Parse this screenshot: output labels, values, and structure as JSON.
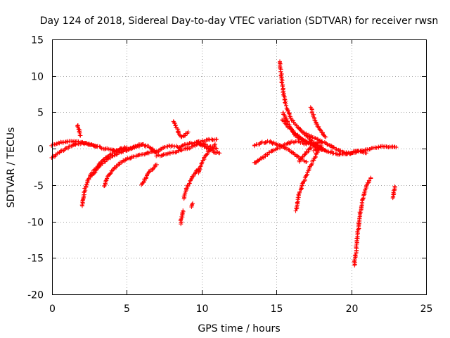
{
  "chart_data": {
    "type": "scatter",
    "title": "Day 124 of 2018, Sidereal Day-to-day VTEC variation (SDTVAR) for receiver rwsn",
    "xlabel": "GPS time / hours",
    "ylabel": "SDTVAR / TECUs",
    "xlim": [
      0,
      25
    ],
    "ylim": [
      -20,
      15
    ],
    "xticks": [
      0,
      5,
      10,
      15,
      20,
      25
    ],
    "yticks": [
      -20,
      -15,
      -10,
      -5,
      0,
      5,
      10,
      15
    ],
    "grid": true,
    "marker": "+",
    "color": "#ff0000",
    "series": [
      {
        "name": "track-01",
        "x": [
          0.0,
          0.5,
          1.0,
          1.5,
          2.0,
          2.5,
          3.0,
          3.5,
          4.0,
          4.5,
          5.0
        ],
        "y": [
          0.5,
          0.8,
          1.0,
          1.0,
          0.8,
          0.6,
          0.3,
          0.0,
          -0.2,
          -0.1,
          0.2
        ]
      },
      {
        "name": "track-02",
        "x": [
          0.0,
          0.4,
          0.8,
          1.2,
          1.6,
          2.0,
          2.5,
          3.0
        ],
        "y": [
          -1.2,
          -0.6,
          -0.1,
          0.3,
          0.6,
          0.8,
          0.6,
          0.3
        ]
      },
      {
        "name": "track-03",
        "x": [
          1.7,
          1.75,
          1.8,
          1.85,
          1.9
        ],
        "y": [
          3.3,
          3.0,
          2.6,
          2.2,
          1.8
        ]
      },
      {
        "name": "track-04",
        "x": [
          2.0,
          2.1,
          2.2,
          2.4,
          2.7,
          3.0,
          3.3,
          3.6,
          4.0,
          4.5
        ],
        "y": [
          -7.8,
          -6.5,
          -5.5,
          -4.3,
          -3.3,
          -2.5,
          -1.8,
          -1.2,
          -0.7,
          -0.2
        ]
      },
      {
        "name": "track-05",
        "x": [
          2.6,
          3.0,
          3.4,
          3.8,
          4.2,
          4.8,
          5.5,
          6.0
        ],
        "y": [
          -3.8,
          -2.8,
          -2.0,
          -1.3,
          -0.8,
          -0.3,
          0.2,
          0.5
        ]
      },
      {
        "name": "track-06",
        "x": [
          3.5,
          3.7,
          4.0,
          4.4,
          4.8,
          5.3,
          5.8,
          6.3,
          7.0
        ],
        "y": [
          -5.2,
          -4.0,
          -3.0,
          -2.2,
          -1.6,
          -1.2,
          -0.9,
          -0.6,
          -0.4
        ]
      },
      {
        "name": "track-07",
        "x": [
          4.5,
          5.0,
          5.5,
          6.0,
          6.5,
          7.0,
          7.5,
          8.0,
          8.5,
          9.0,
          9.5,
          10.0,
          10.5,
          11.0
        ],
        "y": [
          0.0,
          -0.2,
          0.3,
          0.6,
          0.2,
          -0.5,
          0.3,
          0.4,
          0.2,
          0.6,
          0.8,
          1.0,
          1.2,
          1.3
        ]
      },
      {
        "name": "track-08",
        "x": [
          6.0,
          6.2,
          6.5,
          6.8,
          7.0
        ],
        "y": [
          -5.0,
          -4.2,
          -3.2,
          -2.6,
          -2.2
        ]
      },
      {
        "name": "track-09",
        "x": [
          7.0,
          7.5,
          8.0,
          8.5,
          9.0,
          9.5,
          10.0,
          10.5,
          11.0
        ],
        "y": [
          -1.0,
          -0.8,
          -0.6,
          -0.3,
          0.0,
          0.4,
          0.7,
          0.3,
          0.0
        ]
      },
      {
        "name": "track-10",
        "x": [
          8.1,
          8.2,
          8.3,
          8.4,
          8.5,
          8.7,
          8.9,
          9.1
        ],
        "y": [
          3.8,
          3.4,
          3.0,
          2.6,
          2.0,
          1.6,
          1.9,
          2.3
        ]
      },
      {
        "name": "track-11",
        "x": [
          8.6,
          8.65,
          8.7,
          8.75
        ],
        "y": [
          -10.3,
          -9.6,
          -9.0,
          -8.5
        ]
      },
      {
        "name": "track-12",
        "x": [
          8.8,
          9.0,
          9.2,
          9.4,
          9.6,
          9.8
        ],
        "y": [
          -6.8,
          -5.5,
          -4.5,
          -3.8,
          -3.2,
          -2.8
        ]
      },
      {
        "name": "track-13",
        "x": [
          9.3,
          9.4
        ],
        "y": [
          -8.0,
          -7.5
        ]
      },
      {
        "name": "track-14",
        "x": [
          9.8,
          10.0,
          10.3,
          10.6,
          10.9
        ],
        "y": [
          -3.3,
          -2.0,
          -0.8,
          0.0,
          0.6
        ]
      },
      {
        "name": "track-15",
        "x": [
          9.7,
          10.0,
          10.4,
          10.8,
          11.2
        ],
        "y": [
          0.8,
          0.5,
          0.0,
          -0.4,
          -0.6
        ]
      },
      {
        "name": "track-16",
        "x": [
          13.5,
          14.0,
          14.5,
          15.0,
          15.5,
          16.0,
          16.5,
          17.0
        ],
        "y": [
          -2.0,
          -1.3,
          -0.6,
          0.0,
          0.5,
          0.9,
          1.0,
          0.6
        ]
      },
      {
        "name": "track-17",
        "x": [
          13.5,
          14.0,
          14.5,
          15.0,
          15.5,
          16.0,
          16.5,
          17.0
        ],
        "y": [
          0.5,
          0.8,
          1.0,
          0.6,
          0.2,
          -0.4,
          -1.2,
          -1.8
        ]
      },
      {
        "name": "track-18",
        "x": [
          15.2,
          15.3,
          15.4,
          15.5,
          15.7,
          16.0,
          16.5,
          17.0,
          17.5,
          18.0
        ],
        "y": [
          12.0,
          10.5,
          8.8,
          7.2,
          5.5,
          4.0,
          2.8,
          1.8,
          0.8,
          0.2
        ]
      },
      {
        "name": "track-19",
        "x": [
          15.4,
          15.6,
          15.8,
          16.0,
          16.2,
          16.5,
          17.0,
          17.5
        ],
        "y": [
          5.0,
          4.2,
          3.3,
          2.6,
          2.0,
          1.5,
          0.9,
          0.5
        ]
      },
      {
        "name": "track-20",
        "x": [
          15.4,
          15.8,
          16.2,
          16.6,
          17.0,
          17.4,
          17.8,
          18.2
        ],
        "y": [
          4.0,
          3.0,
          2.2,
          1.5,
          1.0,
          0.5,
          0.0,
          -0.2
        ]
      },
      {
        "name": "track-21",
        "x": [
          16.3,
          16.5,
          16.8,
          17.1,
          17.4,
          17.7,
          18.0
        ],
        "y": [
          -8.5,
          -6.3,
          -4.6,
          -3.2,
          -1.8,
          -0.6,
          0.4
        ]
      },
      {
        "name": "track-22",
        "x": [
          16.5,
          17.0,
          17.5,
          18.0
        ],
        "y": [
          -1.8,
          -0.5,
          0.5,
          1.0
        ]
      },
      {
        "name": "track-23",
        "x": [
          17.3,
          17.5,
          17.7,
          18.0,
          18.3
        ],
        "y": [
          5.6,
          4.3,
          3.3,
          2.3,
          1.6
        ]
      },
      {
        "name": "track-24",
        "x": [
          17.0,
          17.5,
          18.0,
          18.5,
          19.0,
          19.5,
          20.0,
          20.5,
          21.0,
          21.5,
          22.0,
          22.5,
          23.0
        ],
        "y": [
          2.0,
          1.5,
          1.0,
          0.5,
          -0.1,
          -0.5,
          -0.7,
          -0.3,
          -0.2,
          0.1,
          0.3,
          0.3,
          0.2
        ]
      },
      {
        "name": "track-25",
        "x": [
          17.5,
          18.0,
          18.5,
          19.0,
          19.5,
          20.0,
          20.5,
          21.0
        ],
        "y": [
          -0.2,
          0.0,
          -0.4,
          -0.7,
          -0.8,
          -0.5,
          -0.3,
          -0.6
        ]
      },
      {
        "name": "track-26",
        "x": [
          20.2,
          20.3,
          20.4,
          20.5,
          20.6,
          20.75,
          20.9,
          21.1,
          21.3
        ],
        "y": [
          -16.0,
          -14.2,
          -12.3,
          -10.5,
          -8.8,
          -7.2,
          -6.0,
          -4.8,
          -4.0
        ]
      },
      {
        "name": "track-27",
        "x": [
          22.8,
          22.85,
          22.9
        ],
        "y": [
          -6.8,
          -6.0,
          -5.2
        ]
      }
    ]
  }
}
